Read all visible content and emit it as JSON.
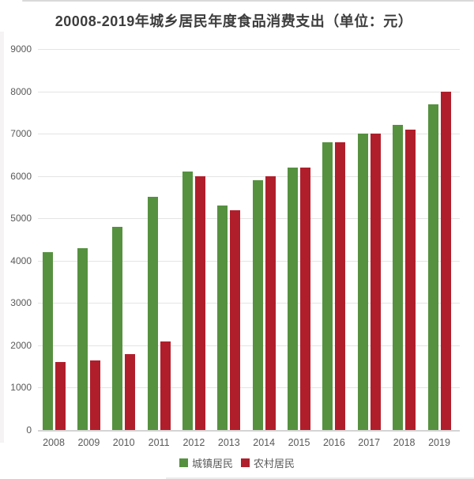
{
  "title": "20008-2019年城乡居民年度食品消费支出（单位：元）",
  "colors": {
    "urban_green": "#569140",
    "rural_red": "#b11e2b",
    "gridline": "#e4e4e4",
    "baseline": "#d4d4d4",
    "axis_text": "#595959",
    "title_text": "#3d3d3d"
  },
  "chart_data": {
    "type": "bar",
    "title": "20008-2019年城乡居民年度食品消费支出（单位：元）",
    "categories": [
      "2008",
      "2009",
      "2010",
      "2011",
      "2012",
      "2013",
      "2014",
      "2015",
      "2016",
      "2017",
      "2018",
      "2019"
    ],
    "series": [
      {
        "name": "城镇居民",
        "color": "#569140",
        "values": [
          4200,
          4300,
          4800,
          5500,
          6100,
          5300,
          5900,
          6200,
          6800,
          7000,
          7200,
          7700
        ]
      },
      {
        "name": "农村居民",
        "color": "#b11e2b",
        "values": [
          1600,
          1650,
          1800,
          2100,
          6000,
          5200,
          6000,
          6200,
          6800,
          7000,
          7100,
          8000
        ]
      }
    ],
    "xlabel": "",
    "ylabel": "",
    "ylim": [
      0,
      9000
    ],
    "ytick_step": 1000,
    "yticks": [
      "0",
      "1000",
      "2000",
      "3000",
      "4000",
      "5000",
      "6000",
      "7000",
      "8000",
      "9000"
    ],
    "grid": true,
    "legend_position": "bottom"
  },
  "legend": {
    "items": [
      {
        "label": "城镇居民",
        "color": "#569140"
      },
      {
        "label": "农村居民",
        "color": "#b11e2b"
      }
    ]
  }
}
